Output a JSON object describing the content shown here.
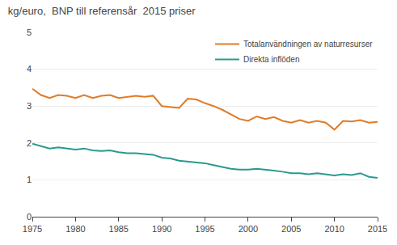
{
  "chart_data": {
    "type": "line",
    "title": "kg/euro,  BNP till referensår  2015 priser",
    "x": [
      1975,
      1976,
      1977,
      1978,
      1979,
      1980,
      1981,
      1982,
      1983,
      1984,
      1985,
      1986,
      1987,
      1988,
      1989,
      1990,
      1991,
      1992,
      1993,
      1994,
      1995,
      1996,
      1997,
      1998,
      1999,
      2000,
      2001,
      2002,
      2003,
      2004,
      2005,
      2006,
      2007,
      2008,
      2009,
      2010,
      2011,
      2012,
      2013,
      2014,
      2015
    ],
    "series": [
      {
        "name": "Totalanvändningen av naturresurser",
        "color": "#E07B27",
        "values": [
          3.47,
          3.3,
          3.22,
          3.3,
          3.28,
          3.22,
          3.3,
          3.22,
          3.28,
          3.3,
          3.22,
          3.25,
          3.28,
          3.25,
          3.28,
          3.0,
          2.97,
          2.95,
          3.2,
          3.18,
          3.08,
          3.0,
          2.9,
          2.78,
          2.65,
          2.6,
          2.72,
          2.65,
          2.7,
          2.6,
          2.55,
          2.62,
          2.55,
          2.6,
          2.55,
          2.36,
          2.6,
          2.58,
          2.62,
          2.55,
          2.57
        ]
      },
      {
        "name": "Direkta inflöden",
        "color": "#2A9A8E",
        "values": [
          1.98,
          1.92,
          1.85,
          1.88,
          1.85,
          1.82,
          1.85,
          1.8,
          1.78,
          1.8,
          1.75,
          1.72,
          1.72,
          1.7,
          1.68,
          1.6,
          1.58,
          1.52,
          1.5,
          1.48,
          1.45,
          1.4,
          1.35,
          1.3,
          1.28,
          1.28,
          1.3,
          1.28,
          1.25,
          1.22,
          1.18,
          1.18,
          1.15,
          1.18,
          1.15,
          1.12,
          1.15,
          1.13,
          1.18,
          1.08,
          1.05
        ]
      }
    ],
    "xlim": [
      1975,
      2015
    ],
    "xticks": [
      1975,
      1980,
      1985,
      1990,
      1995,
      2000,
      2005,
      2010,
      2015
    ],
    "ylim": [
      0,
      5
    ],
    "yticks": [
      0,
      1,
      2,
      3,
      4,
      5
    ],
    "grid": true,
    "legend": "upper right"
  }
}
